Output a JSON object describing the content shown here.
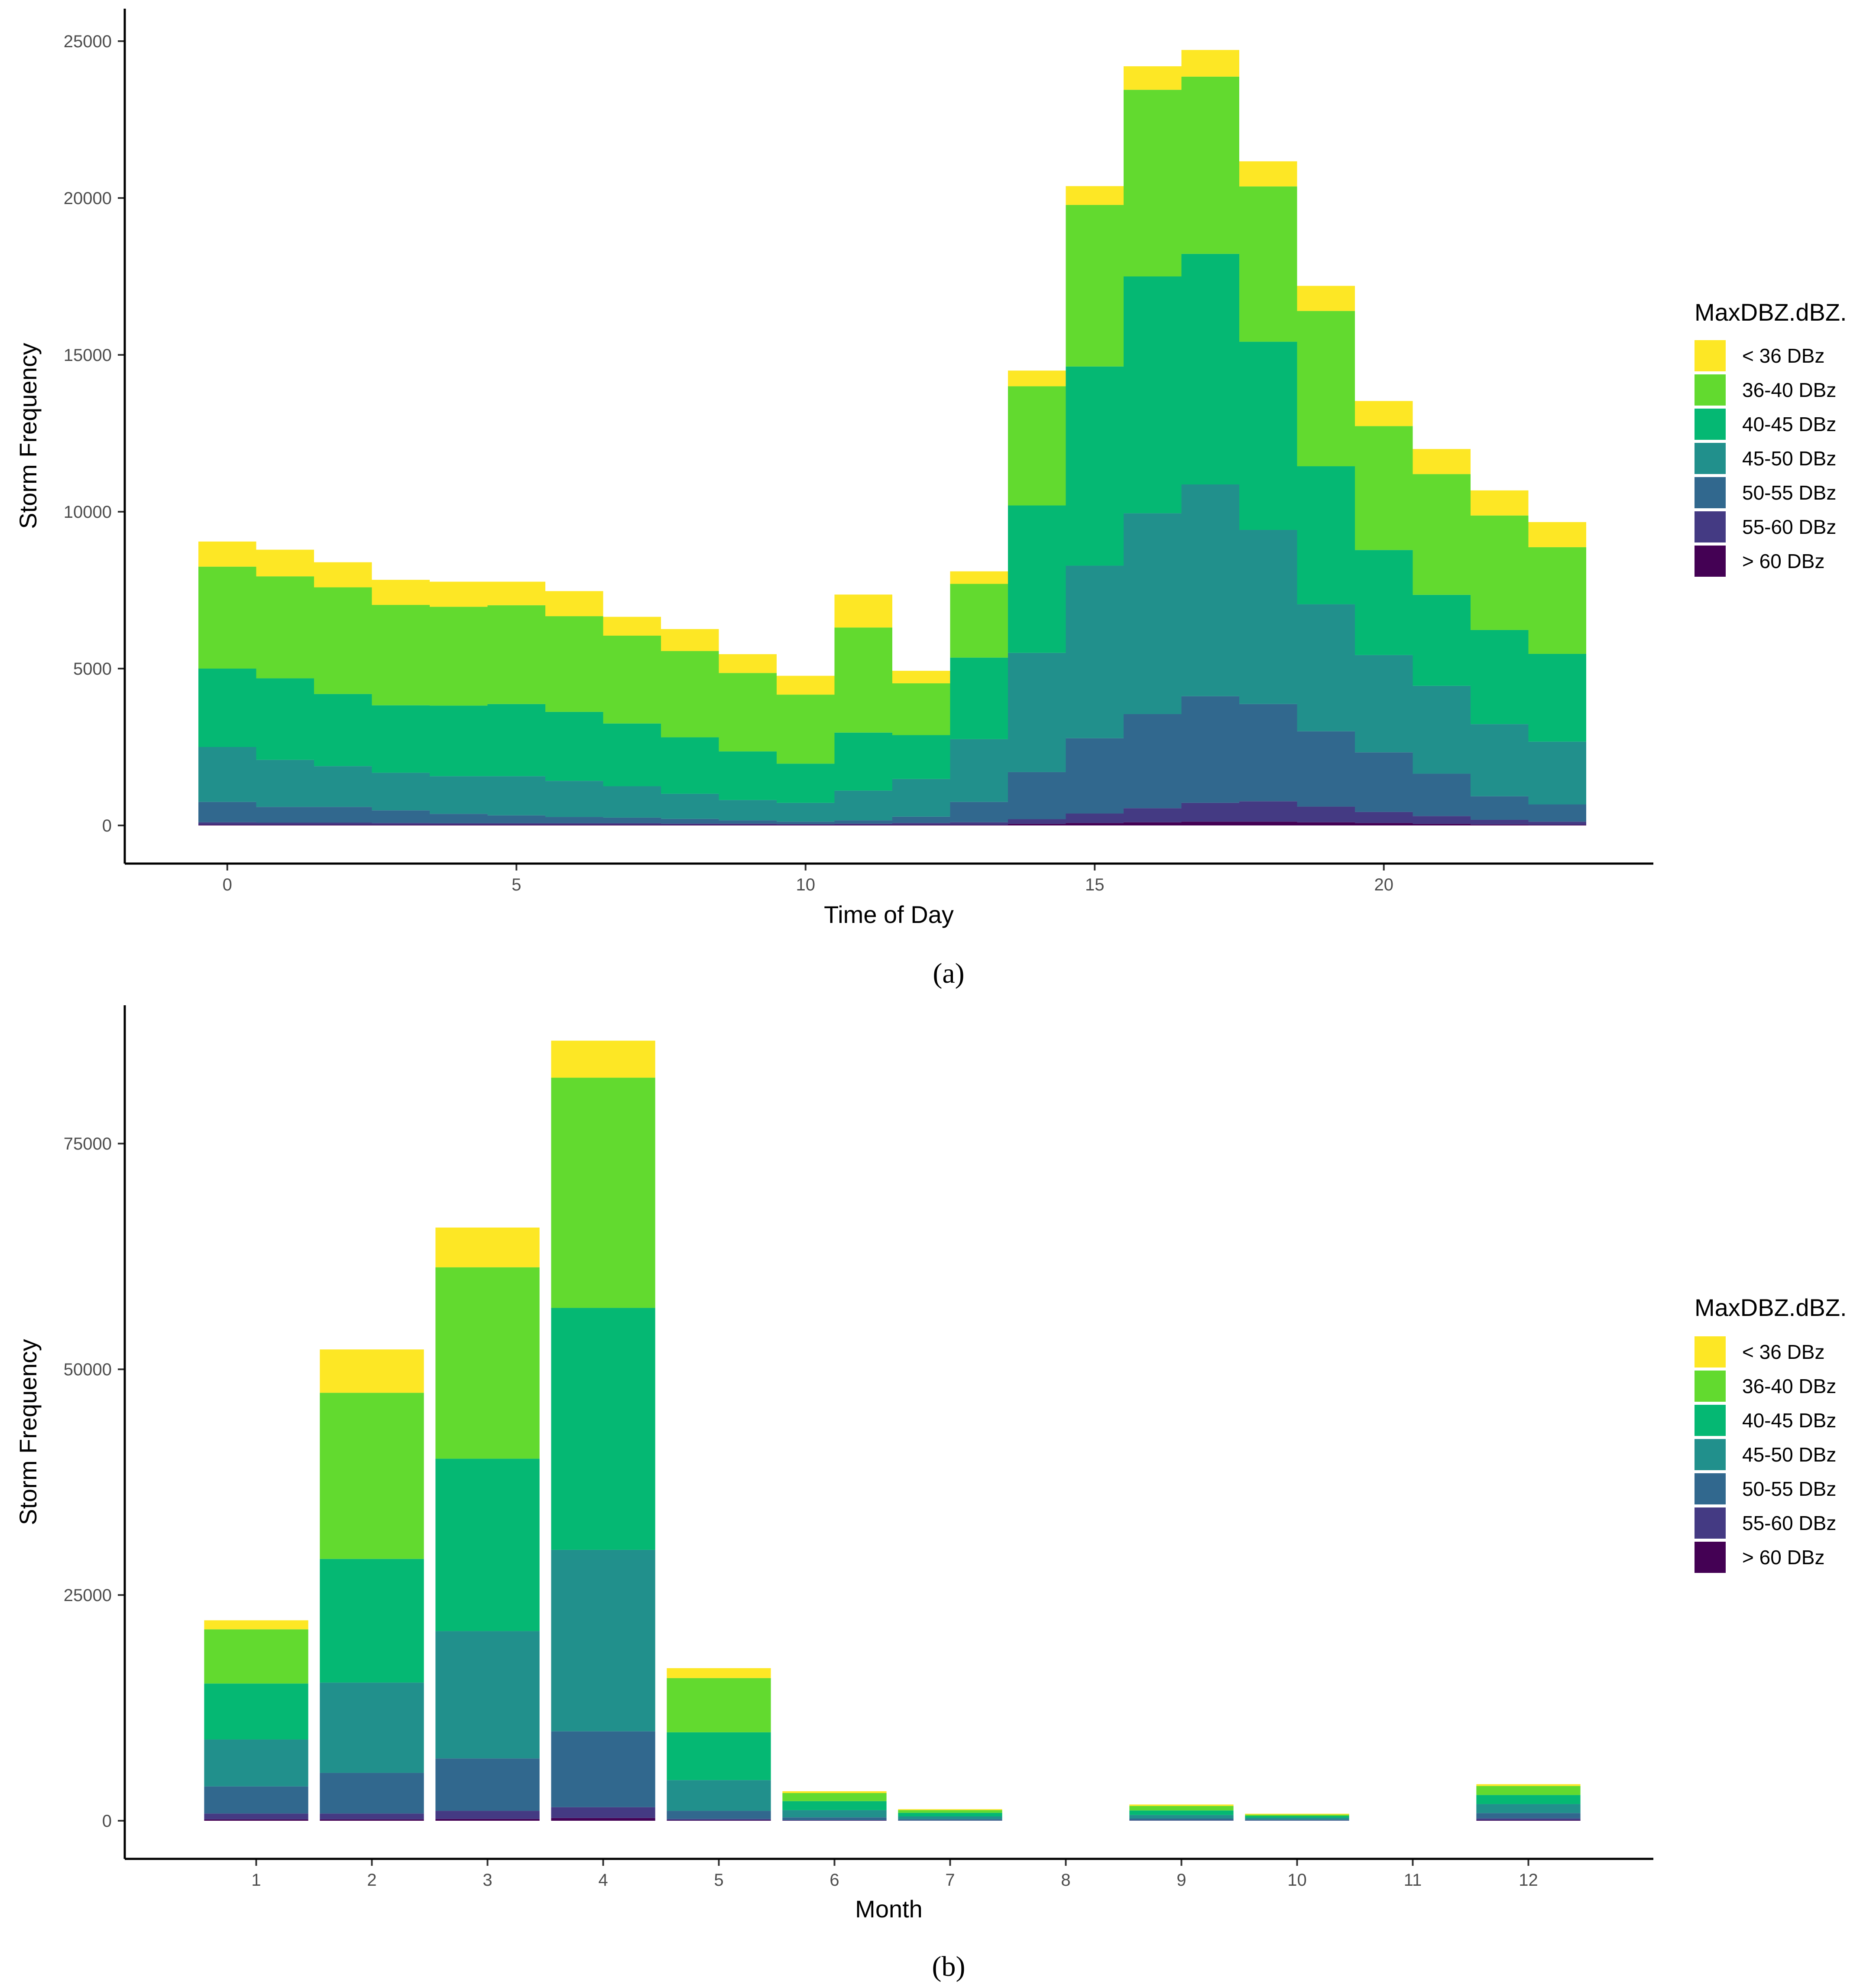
{
  "chart_data": [
    {
      "type": "bar",
      "stacked": true,
      "caption": "(a)",
      "xlabel": "Time of Day",
      "ylabel": "Storm Frequency",
      "x": [
        0,
        1,
        2,
        3,
        4,
        5,
        6,
        7,
        8,
        9,
        10,
        11,
        12,
        13,
        14,
        15,
        16,
        17,
        18,
        19,
        20,
        21,
        22,
        23
      ],
      "xticks": [
        0,
        5,
        10,
        15,
        20
      ],
      "yticks": [
        0,
        5000,
        10000,
        15000,
        20000,
        25000
      ],
      "xlim": [
        -0.5,
        23.5
      ],
      "ylim": [
        0,
        25000
      ],
      "legend": {
        "title": "MaxDBZ.dBZ.",
        "position": "right"
      },
      "grid": false,
      "series": [
        {
          "name": "> 60 DBz",
          "color": "#440154",
          "values": [
            20,
            20,
            20,
            20,
            20,
            20,
            20,
            20,
            20,
            20,
            20,
            20,
            20,
            20,
            50,
            80,
            100,
            120,
            120,
            100,
            80,
            50,
            30,
            20
          ]
        },
        {
          "name": "55-60 DBz",
          "color": "#443A83",
          "values": [
            80,
            70,
            70,
            60,
            50,
            50,
            50,
            50,
            40,
            40,
            30,
            40,
            60,
            80,
            150,
            300,
            450,
            600,
            650,
            500,
            350,
            250,
            150,
            100
          ]
        },
        {
          "name": "50-55 DBz",
          "color": "#31688E",
          "values": [
            650,
            500,
            500,
            400,
            300,
            250,
            200,
            180,
            150,
            100,
            70,
            100,
            200,
            650,
            1500,
            2400,
            3000,
            3400,
            3100,
            2400,
            1900,
            1350,
            750,
            550
          ]
        },
        {
          "name": "45-50 DBz",
          "color": "#21908C",
          "values": [
            1750,
            1500,
            1300,
            1200,
            1200,
            1250,
            1150,
            1000,
            800,
            650,
            600,
            950,
            1200,
            2000,
            3800,
            5500,
            6400,
            6750,
            5550,
            4050,
            3100,
            2800,
            2300,
            2000
          ]
        },
        {
          "name": "40-45 DBz",
          "color": "#05B873",
          "values": [
            2500,
            2600,
            2300,
            2150,
            2250,
            2300,
            2200,
            2000,
            1800,
            1550,
            1250,
            1850,
            1400,
            2600,
            4700,
            6350,
            7550,
            7350,
            6000,
            4400,
            3350,
            2900,
            3000,
            2800
          ]
        },
        {
          "name": "36-40 DBz",
          "color": "#62DA2F",
          "values": [
            3250,
            3250,
            3400,
            3200,
            3150,
            3150,
            3050,
            2800,
            2750,
            2500,
            2200,
            3350,
            1650,
            2350,
            3800,
            5150,
            5950,
            5650,
            4950,
            4950,
            3950,
            3850,
            3650,
            3400
          ]
        },
        {
          "name": "< 36 DBz",
          "color": "#FDE725",
          "values": [
            800,
            850,
            800,
            800,
            800,
            750,
            800,
            600,
            700,
            600,
            600,
            1050,
            400,
            400,
            500,
            600,
            750,
            850,
            800,
            800,
            800,
            800,
            800,
            800
          ]
        }
      ]
    },
    {
      "type": "bar",
      "stacked": true,
      "caption": "(b)",
      "xlabel": "Month",
      "ylabel": "Storm Frequency",
      "categories": [
        "1",
        "2",
        "3",
        "4",
        "5",
        "6",
        "7",
        "8",
        "9",
        "10",
        "11",
        "12"
      ],
      "yticks": [
        0,
        25000,
        50000,
        75000
      ],
      "ylim": [
        0,
        86000
      ],
      "legend": {
        "title": "MaxDBZ.dBZ.",
        "position": "right"
      },
      "grid": false,
      "series": [
        {
          "name": "> 60 DBz",
          "color": "#440154",
          "values": [
            150,
            150,
            200,
            300,
            50,
            20,
            10,
            0,
            10,
            10,
            0,
            50
          ]
        },
        {
          "name": "55-60 DBz",
          "color": "#443A83",
          "values": [
            650,
            650,
            900,
            1200,
            150,
            50,
            20,
            0,
            30,
            20,
            0,
            200
          ]
        },
        {
          "name": "50-55 DBz",
          "color": "#31688E",
          "values": [
            3000,
            4500,
            5800,
            8400,
            900,
            300,
            150,
            0,
            200,
            100,
            0,
            600
          ]
        },
        {
          "name": "45-50 DBz",
          "color": "#21908C",
          "values": [
            5200,
            10000,
            14100,
            20100,
            3400,
            800,
            300,
            0,
            400,
            200,
            0,
            1000
          ]
        },
        {
          "name": "40-45 DBz",
          "color": "#05B873",
          "values": [
            6200,
            13700,
            19100,
            26800,
            5300,
            1000,
            400,
            0,
            500,
            200,
            0,
            1000
          ]
        },
        {
          "name": "36-40 DBz",
          "color": "#62DA2F",
          "values": [
            6000,
            18400,
            21200,
            25500,
            6000,
            900,
            300,
            0,
            500,
            150,
            0,
            1000
          ]
        },
        {
          "name": "< 36 DBz",
          "color": "#FDE725",
          "values": [
            1000,
            4800,
            4400,
            4100,
            1100,
            200,
            100,
            0,
            160,
            100,
            0,
            200
          ]
        }
      ]
    }
  ]
}
